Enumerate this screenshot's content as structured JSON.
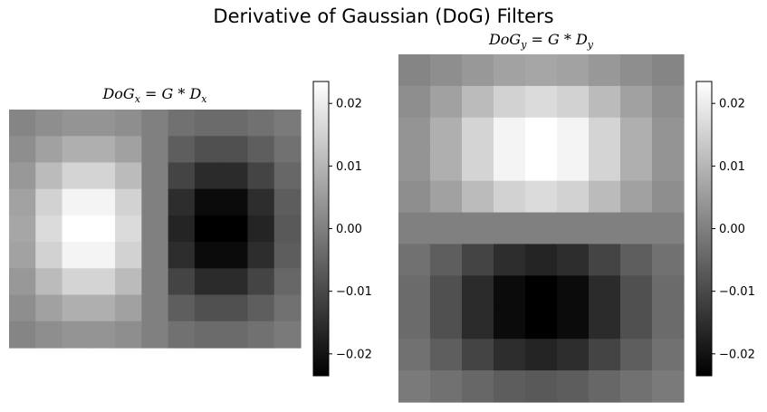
{
  "figure": {
    "title": "Derivative of Gaussian (DoG) Filters"
  },
  "chart_data": [
    {
      "type": "heatmap",
      "title": "DoG_x = G * D_x",
      "title_parts": {
        "base": "DoG",
        "sub": "x",
        "eq": " = G * D",
        "sub2": "x"
      },
      "rows": 9,
      "cols": 11,
      "colormap": "gray",
      "vmin": -0.0235,
      "vmax": 0.0235,
      "colorbar_ticks": [
        0.02,
        0.01,
        0.0,
        -0.01,
        -0.02
      ],
      "colorbar_tick_labels": [
        "0.02",
        "0.01",
        "0.00",
        "−0.01",
        "−0.02"
      ],
      "values": [
        [
          0.0011,
          0.0027,
          0.0038,
          0.0038,
          0.0027,
          0.0,
          -0.0027,
          -0.0038,
          -0.0038,
          -0.0027,
          -0.0011
        ],
        [
          0.0026,
          0.0062,
          0.0088,
          0.0088,
          0.0062,
          0.0,
          -0.0062,
          -0.0088,
          -0.0088,
          -0.0062,
          -0.0026
        ],
        [
          0.0046,
          0.011,
          0.0156,
          0.0156,
          0.011,
          0.0,
          -0.011,
          -0.0156,
          -0.0156,
          -0.011,
          -0.0046
        ],
        [
          0.0064,
          0.0152,
          0.0214,
          0.0214,
          0.0152,
          0.0,
          -0.0152,
          -0.0214,
          -0.0214,
          -0.0152,
          -0.0064
        ],
        [
          0.0071,
          0.0168,
          0.0235,
          0.0235,
          0.0168,
          0.0,
          -0.0168,
          -0.0235,
          -0.0235,
          -0.0168,
          -0.0071
        ],
        [
          0.0064,
          0.0152,
          0.0214,
          0.0214,
          0.0152,
          0.0,
          -0.0152,
          -0.0214,
          -0.0214,
          -0.0152,
          -0.0064
        ],
        [
          0.0046,
          0.011,
          0.0156,
          0.0156,
          0.011,
          0.0,
          -0.011,
          -0.0156,
          -0.0156,
          -0.011,
          -0.0046
        ],
        [
          0.0026,
          0.0062,
          0.0088,
          0.0088,
          0.0062,
          0.0,
          -0.0062,
          -0.0088,
          -0.0088,
          -0.0062,
          -0.0026
        ],
        [
          0.0011,
          0.0027,
          0.0038,
          0.0038,
          0.0027,
          0.0,
          -0.0027,
          -0.0038,
          -0.0038,
          -0.0027,
          -0.0011
        ]
      ]
    },
    {
      "type": "heatmap",
      "title": "DoG_y = G * D_y",
      "title_parts": {
        "base": "DoG",
        "sub": "y",
        "eq": " = G * D",
        "sub2": "y"
      },
      "rows": 11,
      "cols": 9,
      "colormap": "gray",
      "vmin": -0.0235,
      "vmax": 0.0235,
      "colorbar_ticks": [
        0.02,
        0.01,
        0.0,
        -0.01,
        -0.02
      ],
      "colorbar_tick_labels": [
        "0.02",
        "0.01",
        "0.00",
        "−0.01",
        "−0.02"
      ],
      "values": [
        [
          0.0011,
          0.0026,
          0.0046,
          0.0064,
          0.0071,
          0.0064,
          0.0046,
          0.0026,
          0.0011
        ],
        [
          0.0027,
          0.0062,
          0.011,
          0.0152,
          0.0168,
          0.0152,
          0.011,
          0.0062,
          0.0027
        ],
        [
          0.0038,
          0.0088,
          0.0156,
          0.0214,
          0.0235,
          0.0214,
          0.0156,
          0.0088,
          0.0038
        ],
        [
          0.0038,
          0.0088,
          0.0156,
          0.0214,
          0.0235,
          0.0214,
          0.0156,
          0.0088,
          0.0038
        ],
        [
          0.0027,
          0.0062,
          0.011,
          0.0152,
          0.0168,
          0.0152,
          0.011,
          0.0062,
          0.0027
        ],
        [
          0.0,
          0.0,
          0.0,
          0.0,
          0.0,
          0.0,
          0.0,
          0.0,
          0.0
        ],
        [
          -0.0027,
          -0.0062,
          -0.011,
          -0.0152,
          -0.0168,
          -0.0152,
          -0.011,
          -0.0062,
          -0.0027
        ],
        [
          -0.0038,
          -0.0088,
          -0.0156,
          -0.0214,
          -0.0235,
          -0.0214,
          -0.0156,
          -0.0088,
          -0.0038
        ],
        [
          -0.0038,
          -0.0088,
          -0.0156,
          -0.0214,
          -0.0235,
          -0.0214,
          -0.0156,
          -0.0088,
          -0.0038
        ],
        [
          -0.0027,
          -0.0062,
          -0.011,
          -0.0152,
          -0.0168,
          -0.0152,
          -0.011,
          -0.0062,
          -0.0027
        ],
        [
          -0.0011,
          -0.0026,
          -0.0046,
          -0.0064,
          -0.0071,
          -0.0064,
          -0.0046,
          -0.0026,
          -0.0011
        ]
      ]
    }
  ]
}
